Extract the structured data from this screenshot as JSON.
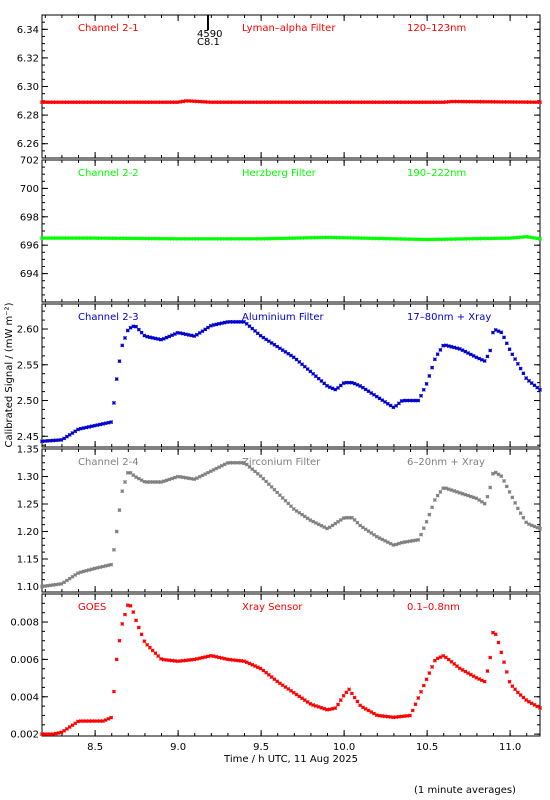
{
  "figure": {
    "xlabel": "Time / h UTC, 11 Aug 2025",
    "ylabel": "Calibrated Signal / (mW m⁻²)",
    "footnote": "(1 minute averages)",
    "event_marker": {
      "x": 9.18,
      "number": "4590",
      "class": "C8.1"
    },
    "xlim": [
      8.18,
      11.18
    ],
    "xticks": [
      8.5,
      9.0,
      9.5,
      10.0,
      10.5,
      11.0
    ],
    "xtick_labels": [
      "8.5",
      "9.0",
      "9.5",
      "10.0",
      "10.5",
      "11.0"
    ]
  },
  "chart_data": [
    {
      "type": "scatter",
      "channel": "Channel 2-1",
      "filter": "Lyman–alpha Filter",
      "band": "120–123nm",
      "color": "#ff0000",
      "ylim": [
        6.25,
        6.35
      ],
      "yticks": [
        6.26,
        6.28,
        6.3,
        6.32,
        6.34
      ],
      "ytick_labels": [
        "6.26",
        "6.28",
        "6.30",
        "6.32",
        "6.34"
      ],
      "x": [
        8.18,
        8.5,
        9.0,
        9.05,
        9.2,
        10.0,
        10.6,
        10.65,
        11.18
      ],
      "y": [
        6.289,
        6.289,
        6.289,
        6.29,
        6.289,
        6.289,
        6.289,
        6.2895,
        6.289
      ]
    },
    {
      "type": "scatter",
      "channel": "Channel 2-2",
      "filter": "Herzberg Filter",
      "band": "190–222nm",
      "color": "#00ff00",
      "ylim": [
        692,
        702
      ],
      "yticks": [
        694,
        696,
        698,
        700,
        702
      ],
      "ytick_labels": [
        "694",
        "696",
        "698",
        "700",
        "702"
      ],
      "x": [
        8.18,
        8.5,
        9.0,
        9.5,
        9.9,
        10.5,
        11.0,
        11.1,
        11.18
      ],
      "y": [
        696.5,
        696.5,
        696.45,
        696.45,
        696.55,
        696.4,
        696.5,
        696.6,
        696.45
      ]
    },
    {
      "type": "scatter",
      "channel": "Channel 2-3",
      "filter": "Aluminium Filter",
      "band": "17–80nm + Xray",
      "color": "#0000cc",
      "ylim": [
        2.435,
        2.635
      ],
      "yticks": [
        2.45,
        2.5,
        2.55,
        2.6
      ],
      "ytick_labels": [
        "2.45",
        "2.50",
        "2.55",
        "2.60"
      ],
      "x": [
        8.18,
        8.3,
        8.4,
        8.5,
        8.6,
        8.63,
        8.66,
        8.7,
        8.74,
        8.8,
        8.9,
        9.0,
        9.1,
        9.2,
        9.3,
        9.4,
        9.5,
        9.6,
        9.7,
        9.8,
        9.9,
        9.95,
        10.0,
        10.05,
        10.1,
        10.2,
        10.3,
        10.35,
        10.45,
        10.5,
        10.55,
        10.6,
        10.7,
        10.8,
        10.85,
        10.88,
        10.9,
        10.95,
        11.0,
        11.05,
        11.1,
        11.18
      ],
      "y": [
        2.443,
        2.445,
        2.46,
        2.465,
        2.47,
        2.53,
        2.575,
        2.6,
        2.605,
        2.59,
        2.585,
        2.595,
        2.59,
        2.605,
        2.61,
        2.61,
        2.59,
        2.575,
        2.56,
        2.54,
        2.52,
        2.515,
        2.525,
        2.525,
        2.52,
        2.505,
        2.49,
        2.5,
        2.5,
        2.525,
        2.56,
        2.578,
        2.572,
        2.56,
        2.555,
        2.57,
        2.6,
        2.595,
        2.57,
        2.55,
        2.53,
        2.515
      ]
    },
    {
      "type": "scatter",
      "channel": "Channel 2-4",
      "filter": "Zirconium Filter",
      "band": "6–20nm + Xray",
      "color": "#808080",
      "ylim": [
        1.09,
        1.35
      ],
      "yticks": [
        1.1,
        1.15,
        1.2,
        1.25,
        1.3,
        1.35
      ],
      "ytick_labels": [
        "1.10",
        "1.15",
        "1.20",
        "1.25",
        "1.30",
        "1.35"
      ],
      "x": [
        8.18,
        8.3,
        8.4,
        8.5,
        8.6,
        8.63,
        8.66,
        8.7,
        8.74,
        8.8,
        8.9,
        9.0,
        9.1,
        9.2,
        9.3,
        9.4,
        9.5,
        9.6,
        9.7,
        9.8,
        9.9,
        9.95,
        10.0,
        10.05,
        10.1,
        10.2,
        10.3,
        10.35,
        10.45,
        10.5,
        10.55,
        10.6,
        10.7,
        10.8,
        10.85,
        10.88,
        10.9,
        10.95,
        11.0,
        11.05,
        11.1,
        11.18
      ],
      "y": [
        1.1,
        1.105,
        1.125,
        1.133,
        1.14,
        1.2,
        1.27,
        1.31,
        1.3,
        1.29,
        1.29,
        1.3,
        1.295,
        1.31,
        1.325,
        1.325,
        1.3,
        1.27,
        1.24,
        1.22,
        1.205,
        1.215,
        1.225,
        1.225,
        1.21,
        1.19,
        1.175,
        1.18,
        1.185,
        1.22,
        1.26,
        1.28,
        1.27,
        1.26,
        1.25,
        1.28,
        1.31,
        1.3,
        1.27,
        1.24,
        1.215,
        1.205
      ]
    },
    {
      "type": "scatter",
      "channel": "GOES",
      "filter": "Xray Sensor",
      "band": "0.1–0.8nm",
      "color": "#ff0000",
      "ylim": [
        0.0019,
        0.0095
      ],
      "yticks": [
        0.002,
        0.004,
        0.006,
        0.008
      ],
      "ytick_labels": [
        "0.002",
        "0.004",
        "0.006",
        "0.008"
      ],
      "x": [
        8.18,
        8.25,
        8.3,
        8.4,
        8.5,
        8.55,
        8.6,
        8.63,
        8.66,
        8.7,
        8.72,
        8.75,
        8.8,
        8.9,
        9.0,
        9.1,
        9.2,
        9.3,
        9.4,
        9.5,
        9.6,
        9.7,
        9.8,
        9.9,
        9.95,
        10.0,
        10.03,
        10.06,
        10.1,
        10.2,
        10.3,
        10.4,
        10.5,
        10.55,
        10.6,
        10.7,
        10.8,
        10.85,
        10.88,
        10.9,
        10.93,
        11.0,
        11.05,
        11.1,
        11.18
      ],
      "y": [
        0.002,
        0.002,
        0.0021,
        0.0027,
        0.0027,
        0.0027,
        0.0029,
        0.006,
        0.0078,
        0.009,
        0.0088,
        0.008,
        0.0069,
        0.006,
        0.0059,
        0.006,
        0.0062,
        0.006,
        0.0059,
        0.0055,
        0.0048,
        0.0042,
        0.0036,
        0.0033,
        0.0034,
        0.0041,
        0.0044,
        0.004,
        0.0035,
        0.003,
        0.0029,
        0.003,
        0.005,
        0.006,
        0.0062,
        0.0055,
        0.005,
        0.0048,
        0.0061,
        0.0077,
        0.0069,
        0.0047,
        0.0042,
        0.0038,
        0.0034
      ]
    }
  ]
}
